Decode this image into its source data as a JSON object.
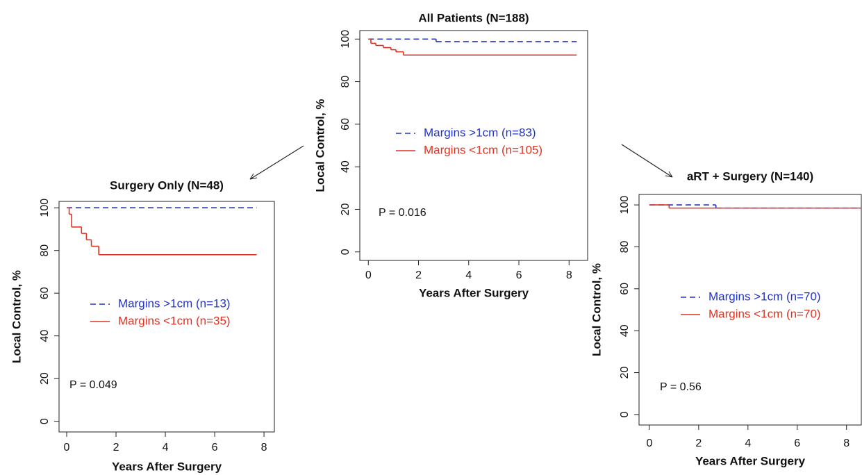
{
  "chart_data": [
    {
      "type": "step",
      "title": "Surgery Only (N=48)",
      "xlabel": "Years After Surgery",
      "ylabel": "Local Control, %",
      "annotation": "P = 0.049",
      "xlim": [
        -0.31,
        8.42
      ],
      "ylim": [
        -5,
        103
      ],
      "xticks": [
        0,
        2,
        4,
        6,
        8
      ],
      "yticks": [
        0,
        20,
        40,
        60,
        80,
        100
      ],
      "series": [
        {
          "name": "Margins >1cm (n=13)",
          "color": "#2233cc",
          "dash": true,
          "x": [
            0,
            7.7
          ],
          "values": [
            100,
            100
          ]
        },
        {
          "name": "Margins <1cm (n=35)",
          "color": "#dd3322",
          "dash": false,
          "x": [
            0,
            0.1,
            0.2,
            0.6,
            0.8,
            1.0,
            1.3,
            7.7
          ],
          "values": [
            100,
            97,
            91,
            88,
            85,
            82,
            78,
            78
          ]
        }
      ]
    },
    {
      "type": "step",
      "title": "All Patients (N=188)",
      "xlabel": "Years After Surgery",
      "ylabel": "Local Control, %",
      "annotation": "P = 0.016",
      "xlim": [
        -0.34,
        8.74
      ],
      "ylim": [
        -4,
        104
      ],
      "xticks": [
        0,
        2,
        4,
        6,
        8
      ],
      "yticks": [
        0,
        20,
        40,
        60,
        80,
        100
      ],
      "series": [
        {
          "name": "Margins >1cm (n=83)",
          "color": "#2233cc",
          "dash": true,
          "x": [
            0,
            2.7,
            8.3
          ],
          "values": [
            100,
            98.8,
            98.8
          ]
        },
        {
          "name": "Margins <1cm (n=105)",
          "color": "#dd3322",
          "dash": false,
          "x": [
            0,
            0.1,
            0.3,
            0.6,
            0.9,
            1.1,
            1.4,
            8.3
          ],
          "values": [
            100,
            98,
            97,
            96,
            95,
            94,
            92.5,
            92.5
          ]
        }
      ]
    },
    {
      "type": "step",
      "title": "aRT + Surgery (N=140)",
      "xlabel": "Years After Surgery",
      "ylabel": "Local Control, %",
      "annotation": "P = 0.56",
      "xlim": [
        -0.42,
        8.6
      ],
      "ylim": [
        -5,
        105
      ],
      "xticks": [
        0,
        2,
        4,
        6,
        8
      ],
      "yticks": [
        0,
        20,
        40,
        60,
        80,
        100
      ],
      "series": [
        {
          "name": "Margins >1cm (n=70)",
          "color": "#2233cc",
          "dash": true,
          "x": [
            0,
            2.7,
            8.6
          ],
          "values": [
            100,
            98.5,
            98.5
          ]
        },
        {
          "name": "Margins <1cm (n=70)",
          "color": "#dd3322",
          "dash": false,
          "x": [
            0,
            0.8,
            8.6
          ],
          "values": [
            100,
            98.5,
            98.5
          ]
        }
      ]
    }
  ]
}
